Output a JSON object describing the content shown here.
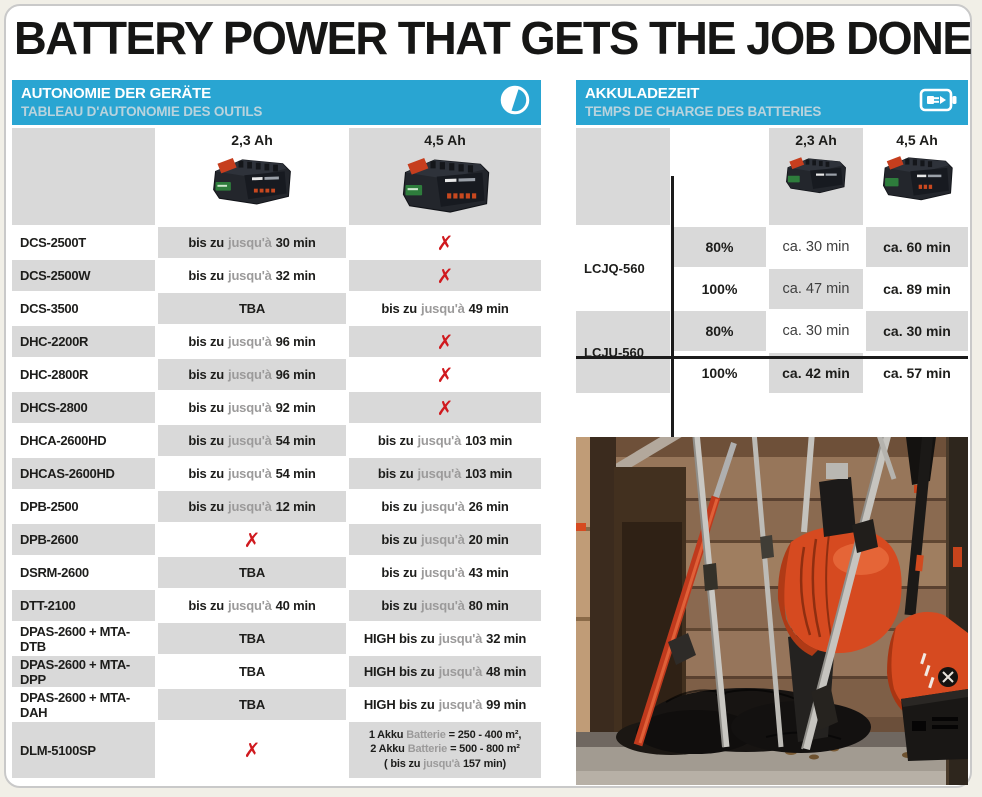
{
  "title": "BATTERY POWER THAT GETS THE JOB DONE",
  "colors": {
    "accent_blue": "#29A5D2",
    "subtitle_blue": "#B9D3DD",
    "cell_gray": "#D9D9D9",
    "x_red": "#D0191E",
    "text_dark": "#1D1D1B",
    "text_gray": "#9B9A9A"
  },
  "icons": {
    "runtime": "duration-half-circle-icon",
    "charging": "battery-charging-icon"
  },
  "runtime": {
    "heading": {
      "de": "AUTONOMIE DER GERÄTE",
      "fr": "TABLEAU D'AUTONOMIE DES OUTILS"
    },
    "columns": {
      "c23": "2,3 Ah",
      "c45": "4,5 Ah"
    },
    "rows": [
      {
        "model": "DCS-2500T",
        "c23": [
          [
            [
              "bis zu",
              "b"
            ],
            [
              "jusqu'à",
              "g"
            ],
            [
              "30 min",
              "b"
            ]
          ]
        ],
        "c45": [
          [
            [
              "✗",
              "x"
            ]
          ]
        ]
      },
      {
        "model": "DCS-2500W",
        "c23": [
          [
            [
              "bis zu",
              "b"
            ],
            [
              "jusqu'à",
              "g"
            ],
            [
              "32 min",
              "b"
            ]
          ]
        ],
        "c45": [
          [
            [
              "✗",
              "x"
            ]
          ]
        ]
      },
      {
        "model": "DCS-3500",
        "c23": [
          [
            [
              "TBA",
              "b"
            ]
          ]
        ],
        "c45": [
          [
            [
              "bis zu",
              "b"
            ],
            [
              "jusqu'à",
              "g"
            ],
            [
              "49 min",
              "b"
            ]
          ]
        ]
      },
      {
        "model": "DHC-2200R",
        "c23": [
          [
            [
              "bis zu",
              "b"
            ],
            [
              "jusqu'à",
              "g"
            ],
            [
              "96 min",
              "b"
            ]
          ]
        ],
        "c45": [
          [
            [
              "✗",
              "x"
            ]
          ]
        ]
      },
      {
        "model": "DHC-2800R",
        "c23": [
          [
            [
              "bis zu",
              "b"
            ],
            [
              "jusqu'à",
              "g"
            ],
            [
              "96 min",
              "b"
            ]
          ]
        ],
        "c45": [
          [
            [
              "✗",
              "x"
            ]
          ]
        ]
      },
      {
        "model": "DHCS-2800",
        "c23": [
          [
            [
              "bis zu",
              "b"
            ],
            [
              "jusqu'à",
              "g"
            ],
            [
              "92 min",
              "b"
            ]
          ]
        ],
        "c45": [
          [
            [
              "✗",
              "x"
            ]
          ]
        ]
      },
      {
        "model": "DHCA-2600HD",
        "c23": [
          [
            [
              "bis zu",
              "b"
            ],
            [
              "jusqu'à",
              "g"
            ],
            [
              "54 min",
              "b"
            ]
          ]
        ],
        "c45": [
          [
            [
              "bis zu",
              "b"
            ],
            [
              "jusqu'à",
              "g"
            ],
            [
              "103 min",
              "b"
            ]
          ]
        ]
      },
      {
        "model": "DHCAS-2600HD",
        "c23": [
          [
            [
              "bis zu",
              "b"
            ],
            [
              "jusqu'à",
              "g"
            ],
            [
              "54 min",
              "b"
            ]
          ]
        ],
        "c45": [
          [
            [
              "bis zu",
              "b"
            ],
            [
              "jusqu'à",
              "g"
            ],
            [
              "103 min",
              "b"
            ]
          ]
        ]
      },
      {
        "model": "DPB-2500",
        "c23": [
          [
            [
              "bis zu",
              "b"
            ],
            [
              "jusqu'à",
              "g"
            ],
            [
              "12 min",
              "b"
            ]
          ]
        ],
        "c45": [
          [
            [
              "bis zu",
              "b"
            ],
            [
              "jusqu'à",
              "g"
            ],
            [
              "26 min",
              "b"
            ]
          ]
        ]
      },
      {
        "model": "DPB-2600",
        "c23": [
          [
            [
              "✗",
              "x"
            ]
          ]
        ],
        "c45": [
          [
            [
              "bis zu",
              "b"
            ],
            [
              "jusqu'à",
              "g"
            ],
            [
              "20 min",
              "b"
            ]
          ]
        ]
      },
      {
        "model": "DSRM-2600",
        "c23": [
          [
            [
              "TBA",
              "b"
            ]
          ]
        ],
        "c45": [
          [
            [
              "bis zu",
              "b"
            ],
            [
              "jusqu'à",
              "g"
            ],
            [
              "43 min",
              "b"
            ]
          ]
        ]
      },
      {
        "model": "DTT-2100",
        "c23": [
          [
            [
              "bis zu",
              "b"
            ],
            [
              "jusqu'à",
              "g"
            ],
            [
              "40 min",
              "b"
            ]
          ]
        ],
        "c45": [
          [
            [
              "bis zu",
              "b"
            ],
            [
              "jusqu'à",
              "g"
            ],
            [
              "80 min",
              "b"
            ]
          ]
        ]
      },
      {
        "model": "DPAS-2600 + MTA-DTB",
        "c23": [
          [
            [
              "TBA",
              "b"
            ]
          ]
        ],
        "c45": [
          [
            [
              "HIGH bis zu",
              "b"
            ],
            [
              "jusqu'à",
              "g"
            ],
            [
              "32 min",
              "b"
            ]
          ]
        ]
      },
      {
        "model": "DPAS-2600 + MTA-DPP",
        "c23": [
          [
            [
              "TBA",
              "b"
            ]
          ]
        ],
        "c45": [
          [
            [
              "HIGH bis zu",
              "b"
            ],
            [
              "jusqu'à",
              "g"
            ],
            [
              "48 min",
              "b"
            ]
          ]
        ]
      },
      {
        "model": "DPAS-2600 + MTA-DAH",
        "c23": [
          [
            [
              "TBA",
              "b"
            ]
          ]
        ],
        "c45": [
          [
            [
              "HIGH bis zu",
              "b"
            ],
            [
              "jusqu'à",
              "g"
            ],
            [
              "99 min",
              "b"
            ]
          ]
        ]
      },
      {
        "model": "DLM-5100SP",
        "c23": [
          [
            [
              "✗",
              "x"
            ]
          ]
        ],
        "c45": [
          [
            [
              "1 Akku",
              "b"
            ],
            [
              "Batterie",
              "g"
            ],
            [
              "= 250 - 400 m²,",
              "b"
            ]
          ],
          [
            [
              "2 Akku",
              "b"
            ],
            [
              "Batterie",
              "g"
            ],
            [
              "= 500 - 800 m²",
              "b"
            ]
          ],
          [
            [
              "( bis zu",
              "b"
            ],
            [
              "jusqu'à",
              "g"
            ],
            [
              "157 min)",
              "b"
            ]
          ]
        ]
      }
    ]
  },
  "charging": {
    "heading": {
      "de": "AKKULADEZEIT",
      "fr": "TEMPS DE CHARGE DES BATTERIES"
    },
    "columns": {
      "c23": "2,3 Ah",
      "c45": "4,5 Ah"
    },
    "groups": [
      {
        "model": "LCJQ-560",
        "rows": [
          {
            "pct": "80%",
            "c23": "ca. 30 min",
            "c23_bold": false,
            "c45": "ca. 60 min"
          },
          {
            "pct": "100%",
            "c23": "ca. 47 min",
            "c23_bold": false,
            "c45": "ca. 89 min"
          }
        ]
      },
      {
        "model": "LCJU-560",
        "rows": [
          {
            "pct": "80%",
            "c23": "ca. 30 min",
            "c23_bold": false,
            "c45": "ca. 30 min"
          },
          {
            "pct": "100%",
            "c23": "ca. 42 min",
            "c23_bold": true,
            "c45": "ca. 57 min"
          }
        ]
      }
    ]
  }
}
